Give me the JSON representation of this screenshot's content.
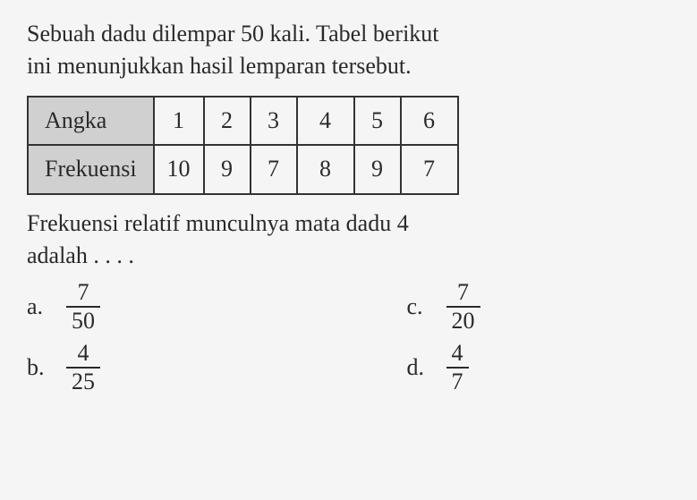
{
  "question": {
    "line1": "Sebuah dadu dilempar 50 kali. Tabel berikut",
    "line2": "ini menunjukkan hasil lemparan tersebut."
  },
  "table": {
    "background_color_header": "#d0d0d0",
    "border_color": "#333333",
    "row1_label": "Angka",
    "row2_label": "Frekuensi",
    "columns": [
      "1",
      "2",
      "3",
      "4",
      "5",
      "6"
    ],
    "values": [
      "10",
      "9",
      "7",
      "8",
      "9",
      "7"
    ]
  },
  "followup": {
    "line1": "Frekuensi relatif munculnya mata dadu 4",
    "line2": "adalah . . . ."
  },
  "options": {
    "a": {
      "label": "a.",
      "num": "7",
      "den": "50"
    },
    "b": {
      "label": "b.",
      "num": "4",
      "den": "25"
    },
    "c": {
      "label": "c.",
      "num": "7",
      "den": "20"
    },
    "d": {
      "label": "d.",
      "num": "4",
      "den": "7"
    }
  },
  "styling": {
    "font_family": "Times New Roman",
    "font_size_pt": 20,
    "text_color": "#2a2a2a",
    "page_background": "#f5f5f5"
  }
}
